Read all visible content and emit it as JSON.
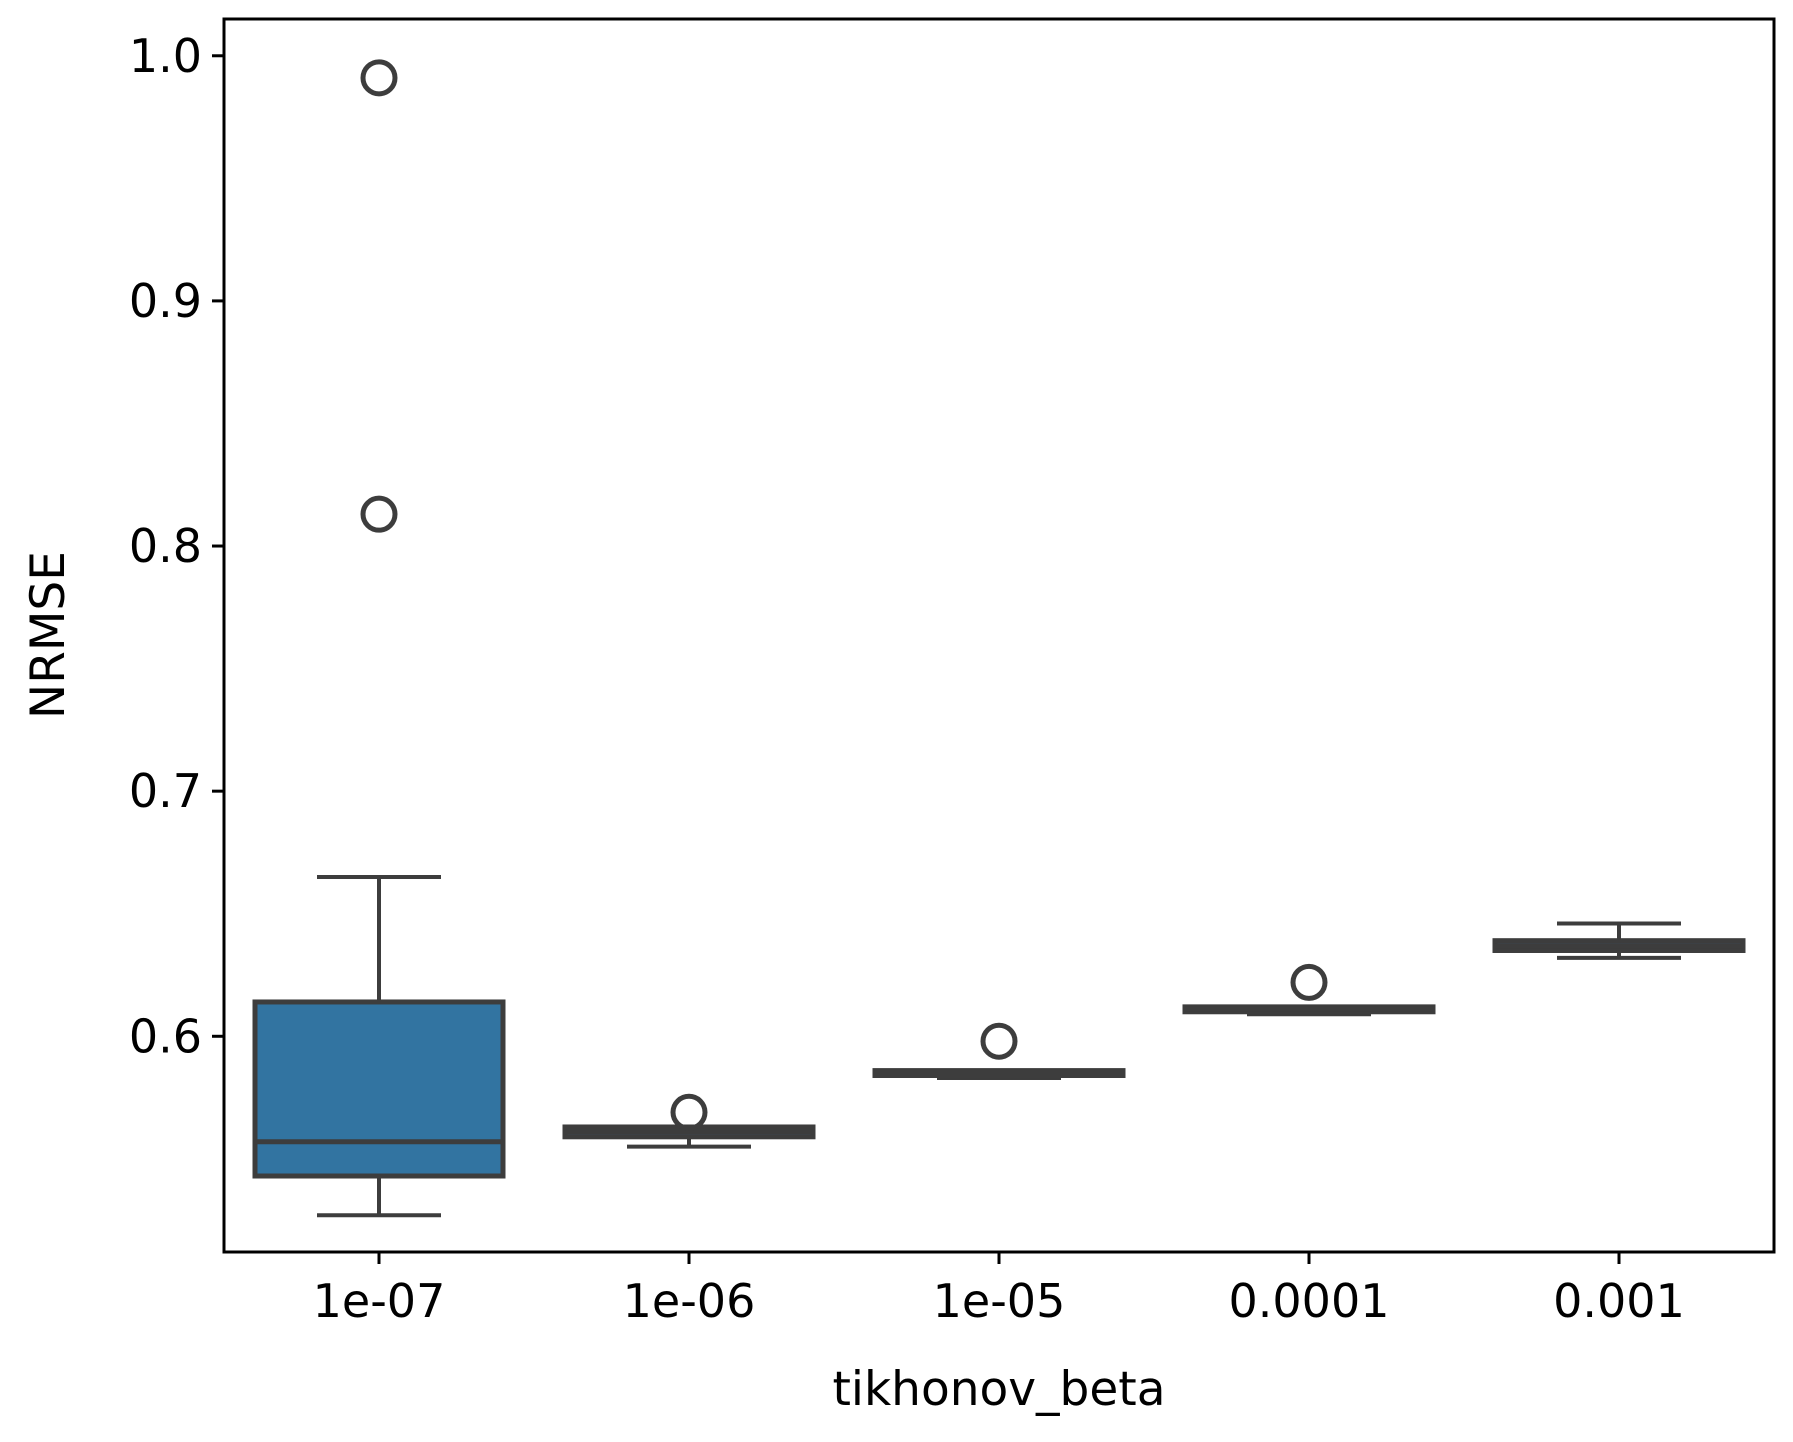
{
  "chart_data": {
    "type": "box",
    "xlabel": "tikhonov_beta",
    "ylabel": "NRMSE",
    "ylim": [
      0.512,
      1.015
    ],
    "yticks": [
      0.6,
      0.7,
      0.8,
      0.9,
      1.0
    ],
    "ytick_labels": [
      "0.6",
      "0.7",
      "0.8",
      "0.9",
      "1.0"
    ],
    "grid": false,
    "legend": "none",
    "categories": [
      "1e-07",
      "1e-06",
      "1e-05",
      "0.0001",
      "0.001"
    ],
    "boxes": [
      {
        "category": "1e-07",
        "whisker_low": 0.527,
        "q1": 0.543,
        "median": 0.557,
        "q3": 0.614,
        "whisker_high": 0.665,
        "outliers": [
          0.813,
          0.991
        ]
      },
      {
        "category": "1e-06",
        "whisker_low": 0.555,
        "q1": 0.559,
        "median": 0.561,
        "q3": 0.563,
        "whisker_high": 0.563,
        "outliers": [
          0.569
        ]
      },
      {
        "category": "1e-05",
        "whisker_low": 0.583,
        "q1": 0.584,
        "median": 0.585,
        "q3": 0.586,
        "whisker_high": 0.586,
        "outliers": [
          0.598
        ]
      },
      {
        "category": "0.0001",
        "whisker_low": 0.609,
        "q1": 0.61,
        "median": 0.611,
        "q3": 0.612,
        "whisker_high": 0.612,
        "outliers": [
          0.622
        ]
      },
      {
        "category": "0.001",
        "whisker_low": 0.632,
        "q1": 0.635,
        "median": 0.637,
        "q3": 0.639,
        "whisker_high": 0.646,
        "outliers": []
      }
    ],
    "colors": {
      "box_fill": "#3274a1",
      "line": "#3d3d3d"
    }
  }
}
